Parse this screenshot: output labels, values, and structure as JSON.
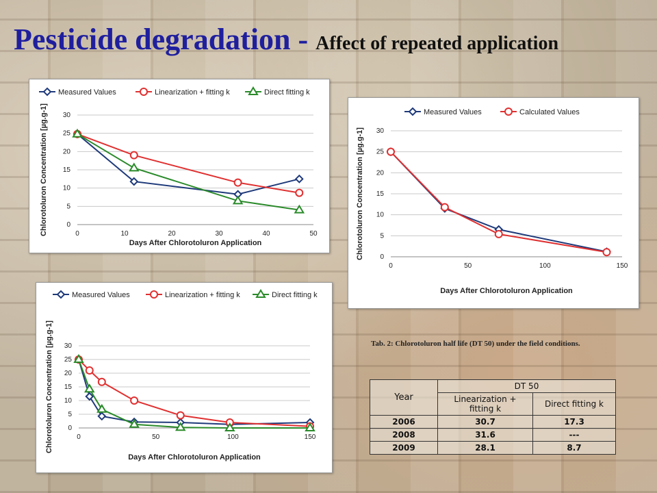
{
  "title": {
    "main": "Pesticide degradation - ",
    "sub": "Affect of repeated application"
  },
  "chart_data": [
    {
      "type": "line",
      "xlabel": "Days After Chlorotoluron Application",
      "ylabel": "Chlorotoluron Concentration [µg.g-1]",
      "xlim": [
        0,
        50
      ],
      "ylim": [
        0,
        30
      ],
      "xticks": [
        0,
        10,
        20,
        30,
        40,
        50
      ],
      "yticks": [
        0,
        5,
        10,
        15,
        20,
        25,
        30
      ],
      "grid": true,
      "legend": "top",
      "series": [
        {
          "name": "Measured Values",
          "color": "#1f3a7a",
          "marker": "diamond",
          "x": [
            0,
            12,
            34,
            47
          ],
          "y": [
            24.8,
            11.8,
            8.3,
            12.5
          ]
        },
        {
          "name": "Linearization + fitting k",
          "color": "#e03030",
          "marker": "circle",
          "x": [
            0,
            12,
            34,
            47
          ],
          "y": [
            24.8,
            19.0,
            11.5,
            8.7
          ]
        },
        {
          "name": "Direct fitting k",
          "color": "#2a8a2a",
          "marker": "triangle",
          "x": [
            0,
            12,
            34,
            47
          ],
          "y": [
            24.8,
            15.5,
            6.5,
            4.0
          ]
        }
      ]
    },
    {
      "type": "line",
      "xlabel": "Days After Chlorotoluron Application",
      "ylabel": "Chlorotoluron Concentration [µg.g-1]",
      "xlim": [
        0,
        150
      ],
      "ylim": [
        0,
        30
      ],
      "xticks": [
        0,
        50,
        100,
        150
      ],
      "yticks": [
        0,
        5,
        10,
        15,
        20,
        25,
        30
      ],
      "grid": true,
      "legend": "top",
      "series": [
        {
          "name": "Measured Values",
          "color": "#1f3a7a",
          "marker": "diamond",
          "x": [
            0,
            35,
            70,
            140
          ],
          "y": [
            25.0,
            11.5,
            6.5,
            1.2
          ]
        },
        {
          "name": "Calculated Values",
          "color": "#e03030",
          "marker": "circle",
          "x": [
            0,
            35,
            70,
            140
          ],
          "y": [
            25.0,
            11.8,
            5.4,
            1.1
          ]
        }
      ]
    },
    {
      "type": "line",
      "xlabel": "Days After Chlorotoluron Application",
      "ylabel": "Chlorotoluron Concentration [µg.g-1]",
      "xlim": [
        0,
        150
      ],
      "ylim": [
        0,
        30
      ],
      "xticks": [
        0,
        50,
        100,
        150
      ],
      "yticks": [
        0,
        5,
        10,
        15,
        20,
        25,
        30
      ],
      "grid": true,
      "legend": "top",
      "series": [
        {
          "name": "Measured Values",
          "color": "#1f3a7a",
          "marker": "diamond",
          "x": [
            0,
            7,
            15,
            36,
            66,
            98,
            150
          ],
          "y": [
            25.0,
            11.5,
            4.3,
            2.2,
            2.0,
            1.3,
            2.0
          ]
        },
        {
          "name": "Linearization + fitting k",
          "color": "#e03030",
          "marker": "circle",
          "x": [
            0,
            7,
            15,
            36,
            66,
            98,
            150
          ],
          "y": [
            25.0,
            21.0,
            16.8,
            10.0,
            4.6,
            2.0,
            0.6
          ]
        },
        {
          "name": "Direct fitting k",
          "color": "#2a8a2a",
          "marker": "triangle",
          "x": [
            0,
            7,
            15,
            36,
            66,
            98,
            150
          ],
          "y": [
            25.0,
            14.2,
            6.8,
            1.3,
            0.2,
            0.0,
            0.0
          ]
        }
      ]
    }
  ],
  "table": {
    "caption": "Tab. 2: Chlorotoluron half life (DT 50) under the field conditions.",
    "dt50": "DT 50",
    "year": "Year",
    "col1": "Linearization + fitting k",
    "col2": "Direct fitting k",
    "rows": [
      {
        "year": "2006",
        "lin": "30.7",
        "direct": "17.3"
      },
      {
        "year": "2008",
        "lin": "31.6",
        "direct": "---"
      },
      {
        "year": "2009",
        "lin": "28.1",
        "direct": "8.7"
      }
    ]
  }
}
